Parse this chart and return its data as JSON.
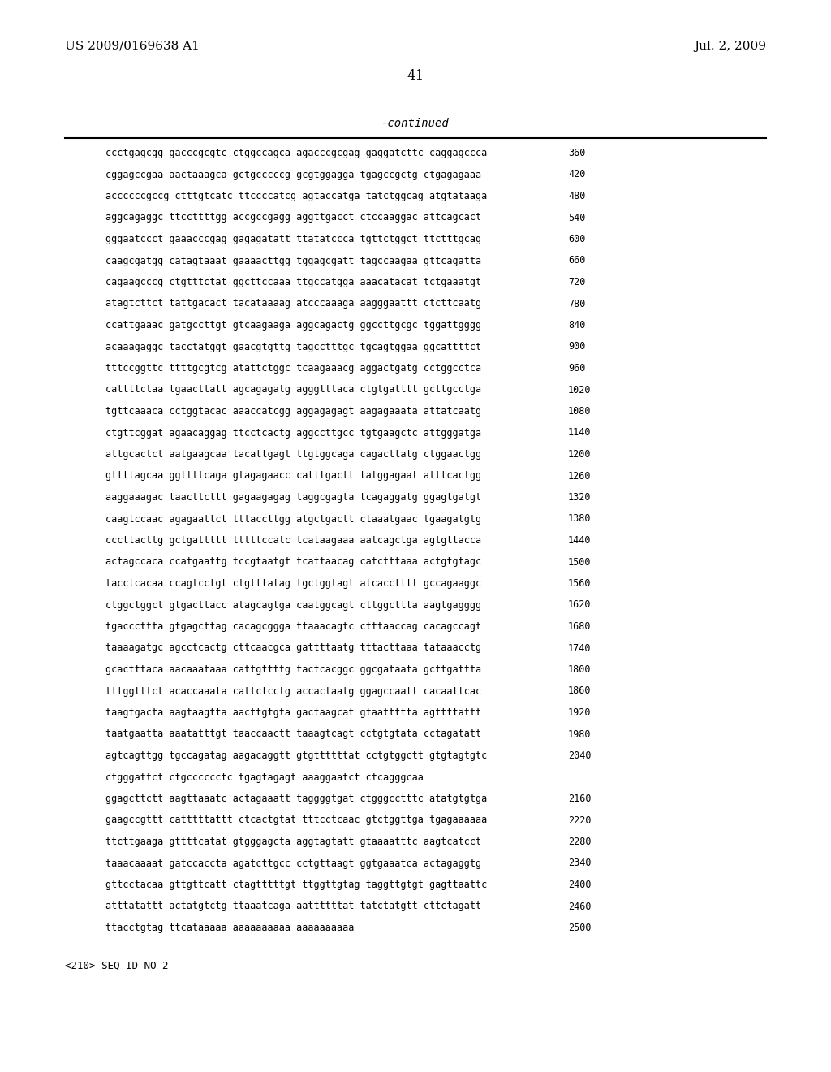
{
  "header_left": "US 2009/0169638 A1",
  "header_right": "Jul. 2, 2009",
  "page_number": "41",
  "continued_label": "-continued",
  "background_color": "#ffffff",
  "text_color": "#000000",
  "sequence_lines": [
    [
      "ccctgagcgg",
      "gacccgcgtc",
      "ctggccagca",
      "agacccgcgag",
      "gaggatcttc",
      "caggagccca",
      "360"
    ],
    [
      "cggagccgaa",
      "aactaaagca",
      "gctgcccccg",
      "gcgtggagga",
      "tgagccgctg",
      "ctgagagaaa",
      "420"
    ],
    [
      "accccccgccg",
      "ctttgtcatc",
      "ttccccatcg",
      "agtaccatga",
      "tatctggcag",
      "atgtataaga",
      "480"
    ],
    [
      "aggcagaggc",
      "ttccttttgg",
      "accgccgagg",
      "aggttgacct",
      "ctccaaggac",
      "attcagcact",
      "540"
    ],
    [
      "gggaatccct",
      "gaaacccgag",
      "gagagatatt",
      "ttatatccca",
      "tgttctggct",
      "ttctttgcag",
      "600"
    ],
    [
      "caagcgatgg",
      "catagtaaat",
      "gaaaacttgg",
      "tggagcgatt",
      "tagccaagaa",
      "gttcagatta",
      "660"
    ],
    [
      "cagaagcccg",
      "ctgtttctat",
      "ggcttccaaa",
      "ttgccatgga",
      "aaacatacat",
      "tctgaaatgt",
      "720"
    ],
    [
      "atagtcttct",
      "tattgacact",
      "tacataaaag",
      "atcccaaaga",
      "aagggaattt",
      "ctcttcaatg",
      "780"
    ],
    [
      "ccattgaaac",
      "gatgccttgt",
      "gtcaagaaga",
      "aggcagactg",
      "ggccttgcgc",
      "tggattgggg",
      "840"
    ],
    [
      "acaaagaggc",
      "tacctatggt",
      "gaacgtgttg",
      "tagcctttgc",
      "tgcagtggaa",
      "ggcattttct",
      "900"
    ],
    [
      "tttccggttc",
      "ttttgcgtcg",
      "atattctggc",
      "tcaagaaacg",
      "aggactgatg",
      "cctggcctca",
      "960"
    ],
    [
      "cattttctaa",
      "tgaacttatt",
      "agcagagatg",
      "agggtttaca",
      "ctgtgatttt",
      "gcttgcctga",
      "1020"
    ],
    [
      "tgttcaaaca",
      "cctggtacac",
      "aaaccatcgg",
      "aggagagagt",
      "aagagaaata",
      "attatcaatg",
      "1080"
    ],
    [
      "ctgttcggat",
      "agaacaggag",
      "ttcctcactg",
      "aggccttgcc",
      "tgtgaagctc",
      "attgggatga",
      "1140"
    ],
    [
      "attgcactct",
      "aatgaagcaa",
      "tacattgagt",
      "ttgtggcaga",
      "cagacttatg",
      "ctggaactgg",
      "1200"
    ],
    [
      "gttttagcaa",
      "ggttttcaga",
      "gtagagaacc",
      "catttgactt",
      "tatggagaat",
      "atttcactgg",
      "1260"
    ],
    [
      "aaggaaagac",
      "taacttcttt",
      "gagaagagag",
      "taggcgagta",
      "tcagaggatg",
      "ggagtgatgt",
      "1320"
    ],
    [
      "caagtccaac",
      "agagaattct",
      "tttaccttgg",
      "atgctgactt",
      "ctaaatgaac",
      "tgaagatgtg",
      "1380"
    ],
    [
      "cccttacttg",
      "gctgattttt",
      "tttttccatc",
      "tcataagaaa",
      "aatcagctga",
      "agtgttacca",
      "1440"
    ],
    [
      "actagccaca",
      "ccatgaattg",
      "tccgtaatgt",
      "tcattaacag",
      "catctttaaa",
      "actgtgtagc",
      "1500"
    ],
    [
      "tacctcacaa",
      "ccagtcctgt",
      "ctgtttatag",
      "tgctggtagt",
      "atcacctttt",
      "gccagaaggc",
      "1560"
    ],
    [
      "ctggctggct",
      "gtgacttacc",
      "atagcagtga",
      "caatggcagt",
      "cttggcttta",
      "aagtgagggg",
      "1620"
    ],
    [
      "tgacccttta",
      "gtgagcttag",
      "cacagcggga",
      "ttaaacagtc",
      "ctttaaccag",
      "cacagccagt",
      "1680"
    ],
    [
      "taaaagatgc",
      "agcctcactg",
      "cttcaacgca",
      "gattttaatg",
      "tttacttaaa",
      "tataaacctg",
      "1740"
    ],
    [
      "gcactttaca",
      "aacaaataaa",
      "cattgttttg",
      "tactcacggc",
      "ggcgataata",
      "gcttgattta",
      "1800"
    ],
    [
      "tttggtttct",
      "acaccaaata",
      "cattctcctg",
      "accactaatg",
      "ggagccaatt",
      "cacaattcac",
      "1860"
    ],
    [
      "taagtgacta",
      "aagtaagtta",
      "aacttgtgta",
      "gactaagcat",
      "gtaattttta",
      "agttttattt",
      "1920"
    ],
    [
      "taatgaatta",
      "aaatatttgt",
      "taaccaactt",
      "taaagtcagt",
      "cctgtgtata",
      "cctagatatt",
      "1980"
    ],
    [
      "agtcagttgg",
      "tgccagatag",
      "aagacaggtt",
      "gtgttttttat",
      "cctgtggctt",
      "gtgtagtgtc",
      "2040"
    ],
    [
      "ctgggattct",
      "ctgcccccctc",
      "tgagtagagt",
      "aaaggaatct",
      "ctcagggcaa",
      ""
    ],
    [
      "ggagcttctt",
      "aagttaaatc",
      "actagaaatt",
      "taggggtgat",
      "ctgggcctttc",
      "atatgtgtga",
      "2160"
    ],
    [
      "gaagccgttt",
      "catttttattt",
      "ctcactgtat",
      "tttcctcaac",
      "gtctggttga",
      "tgagaaaaaa",
      "2220"
    ],
    [
      "ttcttgaaga",
      "gttttcatat",
      "gtgggagcta",
      "aggtagtatt",
      "gtaaaatttc",
      "aagtcatcct",
      "2280"
    ],
    [
      "taaacaaaat",
      "gatccaccta",
      "agatcttgcc",
      "cctgttaagt",
      "ggtgaaatca",
      "actagaggtg",
      "2340"
    ],
    [
      "gttcctacaa",
      "gttgttcatt",
      "ctagtttttgt",
      "ttggttgtag",
      "taggttgtgt",
      "gagttaattc",
      "2400"
    ],
    [
      "atttatattt",
      "actatgtctg",
      "ttaaatcaga",
      "aattttttat",
      "tatctatgtt",
      "cttctagatt",
      "2460"
    ],
    [
      "ttacctgtag",
      "ttcataaaaa",
      "aaaaaaaaaa",
      "aaaaaaaaaa",
      "",
      "2500"
    ]
  ],
  "footer_text": "<210> SEQ ID NO 2"
}
